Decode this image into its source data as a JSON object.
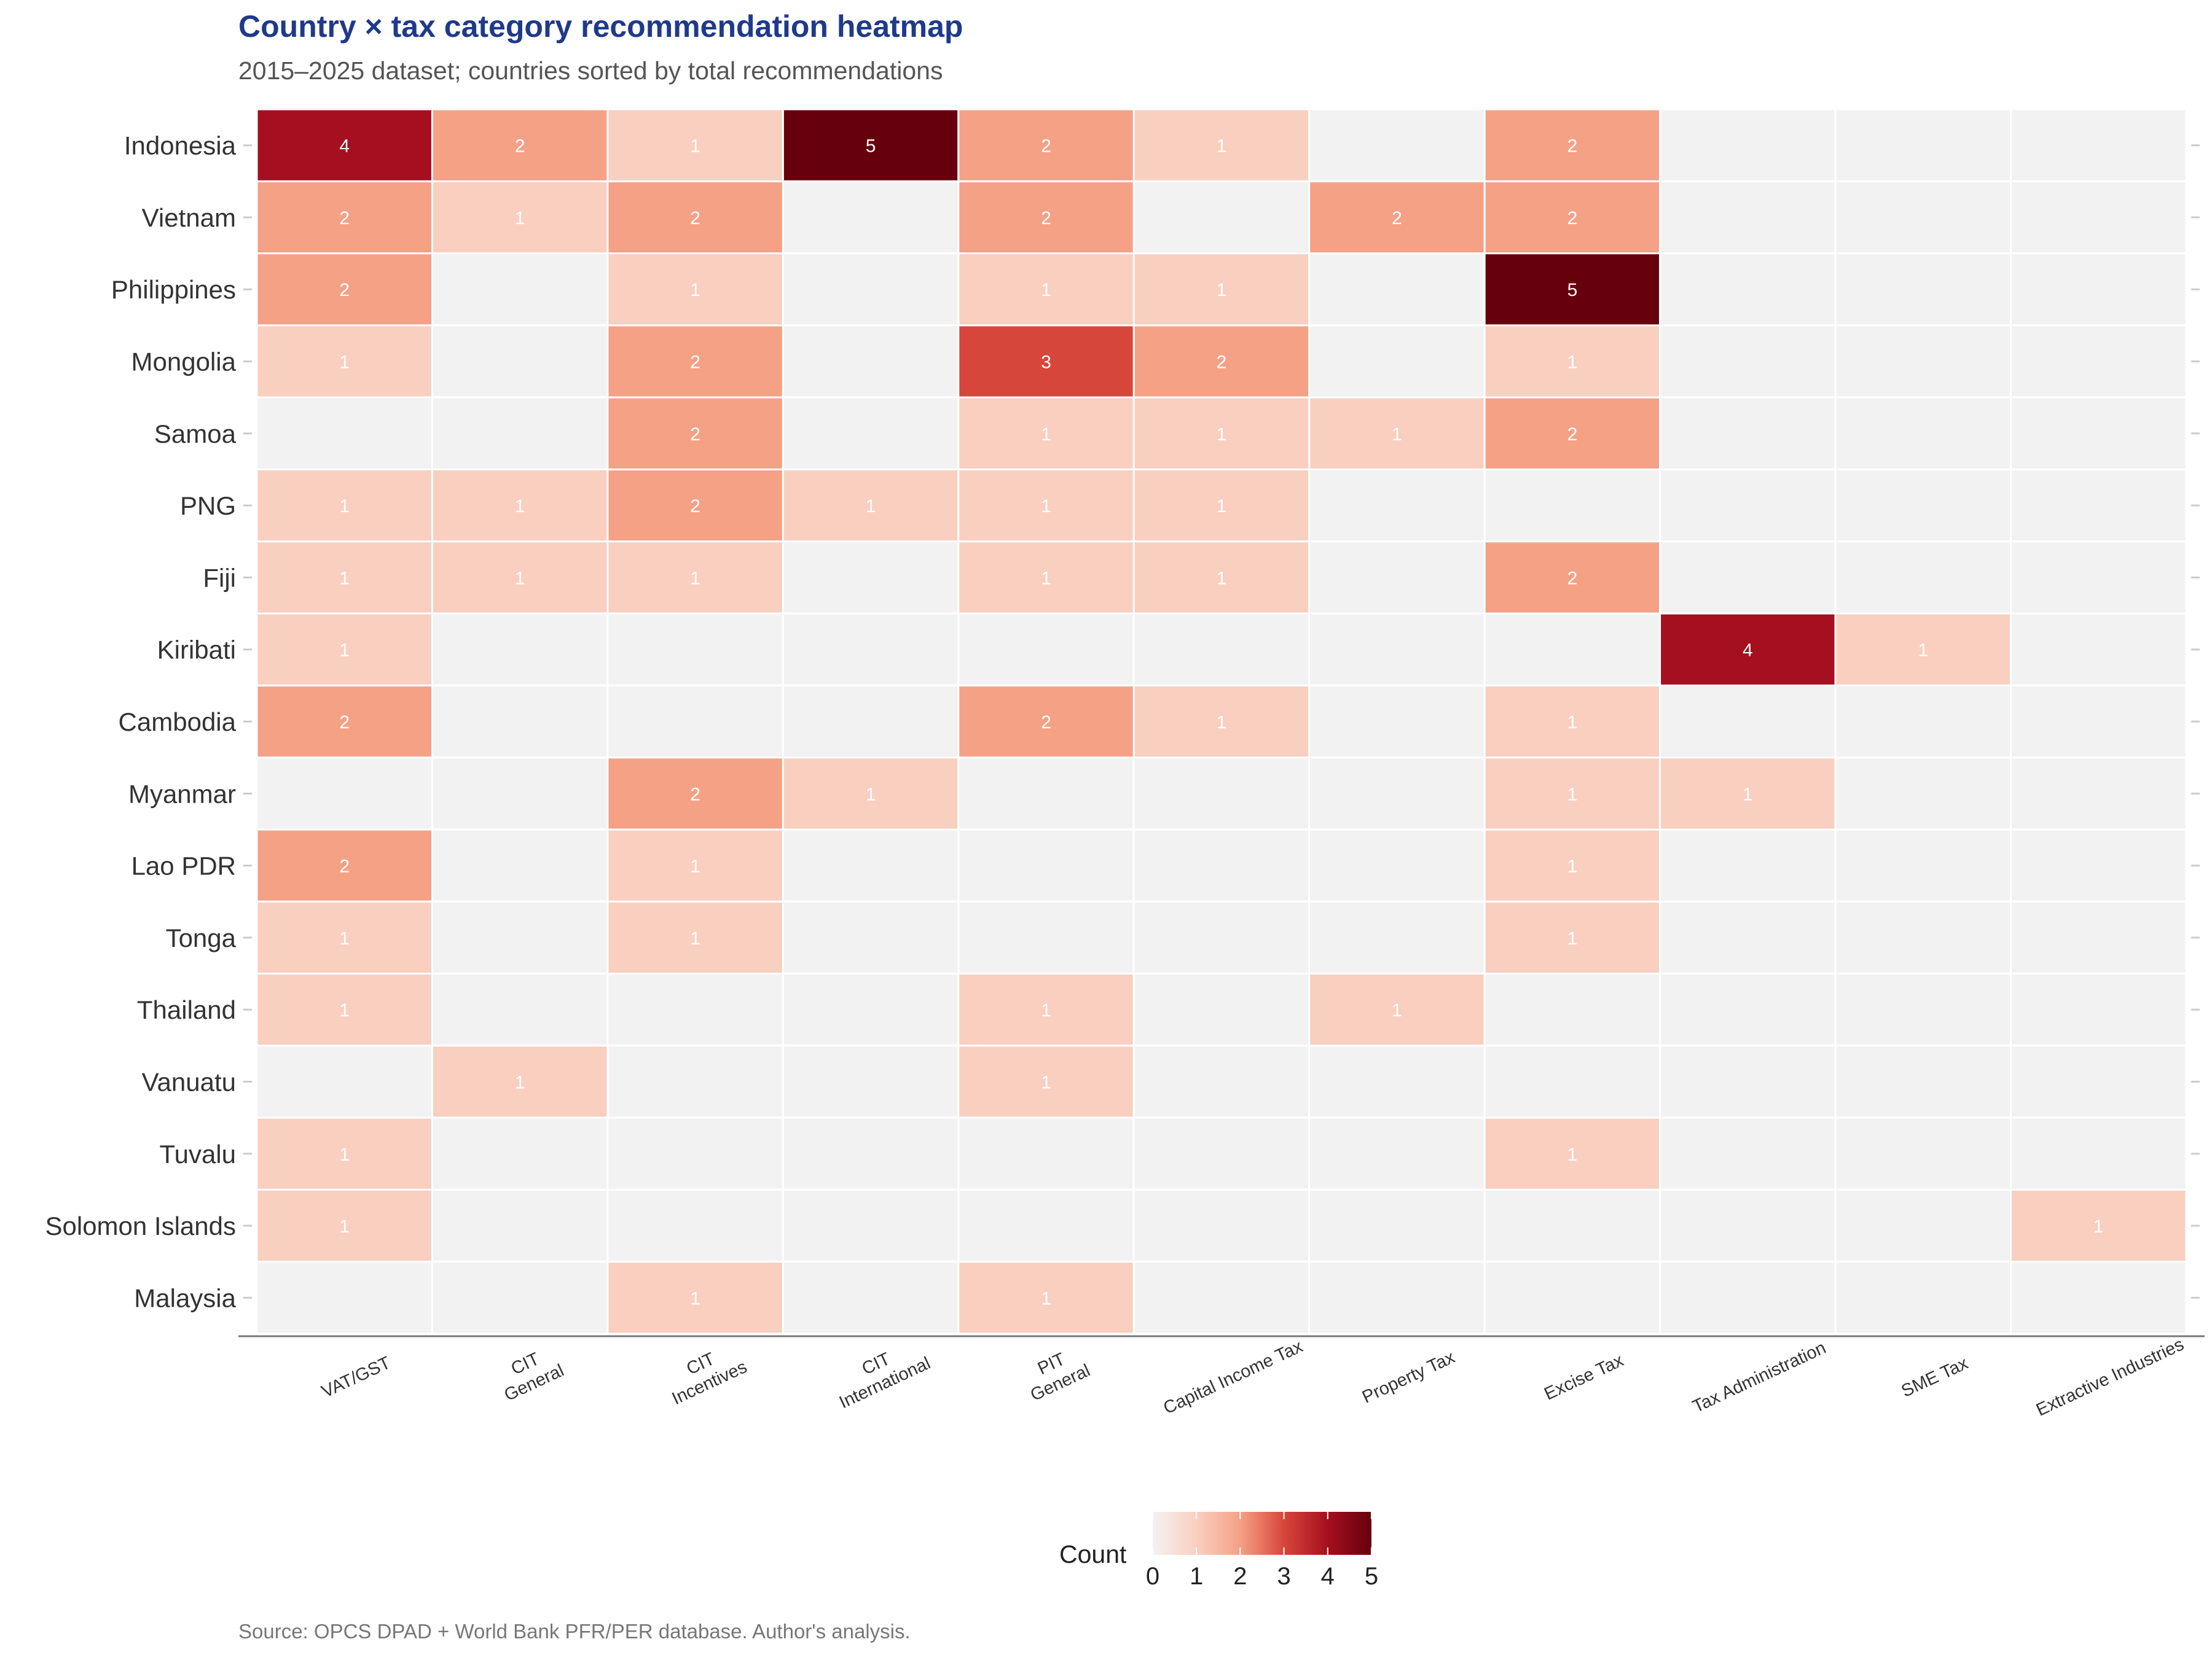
{
  "chart_data": {
    "type": "heatmap",
    "title": "Country × tax category recommendation heatmap",
    "subtitle": "2015–2025 dataset; countries sorted by total recommendations",
    "source": "Source: OPCS DPAD + World Bank PFR/PER database. Author's analysis.",
    "rows": [
      "Indonesia",
      "Vietnam",
      "Philippines",
      "Mongolia",
      "Samoa",
      "PNG",
      "Fiji",
      "Kiribati",
      "Cambodia",
      "Myanmar",
      "Lao PDR",
      "Tonga",
      "Thailand",
      "Vanuatu",
      "Tuvalu",
      "Solomon Islands",
      "Malaysia"
    ],
    "columns": [
      [
        "VAT/GST"
      ],
      [
        "CIT",
        "General"
      ],
      [
        "CIT",
        "Incentives"
      ],
      [
        "CIT",
        "International"
      ],
      [
        "PIT",
        "General"
      ],
      [
        "Capital Income Tax"
      ],
      [
        "Property Tax"
      ],
      [
        "Excise Tax"
      ],
      [
        "Tax Administration"
      ],
      [
        "SME Tax"
      ],
      [
        "Extractive Industries"
      ]
    ],
    "values": [
      [
        4,
        2,
        1,
        5,
        2,
        1,
        0,
        2,
        0,
        0,
        0
      ],
      [
        2,
        1,
        2,
        0,
        2,
        0,
        2,
        2,
        0,
        0,
        0
      ],
      [
        2,
        0,
        1,
        0,
        1,
        1,
        0,
        5,
        0,
        0,
        0
      ],
      [
        1,
        0,
        2,
        0,
        3,
        2,
        0,
        1,
        0,
        0,
        0
      ],
      [
        0,
        0,
        2,
        0,
        1,
        1,
        1,
        2,
        0,
        0,
        0
      ],
      [
        1,
        1,
        2,
        1,
        1,
        1,
        0,
        0,
        0,
        0,
        0
      ],
      [
        1,
        1,
        1,
        0,
        1,
        1,
        0,
        2,
        0,
        0,
        0
      ],
      [
        1,
        0,
        0,
        0,
        0,
        0,
        0,
        0,
        4,
        1,
        0
      ],
      [
        2,
        0,
        0,
        0,
        2,
        1,
        0,
        1,
        0,
        0,
        0
      ],
      [
        0,
        0,
        2,
        1,
        0,
        0,
        0,
        1,
        1,
        0,
        0
      ],
      [
        2,
        0,
        1,
        0,
        0,
        0,
        0,
        1,
        0,
        0,
        0
      ],
      [
        1,
        0,
        1,
        0,
        0,
        0,
        0,
        1,
        0,
        0,
        0
      ],
      [
        1,
        0,
        0,
        0,
        1,
        0,
        1,
        0,
        0,
        0,
        0
      ],
      [
        0,
        1,
        0,
        0,
        1,
        0,
        0,
        0,
        0,
        0,
        0
      ],
      [
        1,
        0,
        0,
        0,
        0,
        0,
        0,
        1,
        0,
        0,
        0
      ],
      [
        1,
        0,
        0,
        0,
        0,
        0,
        0,
        0,
        0,
        0,
        1
      ],
      [
        0,
        0,
        1,
        0,
        1,
        0,
        0,
        0,
        0,
        0,
        0
      ]
    ],
    "legend": {
      "title": "Count",
      "placement": "bottom",
      "range": [
        0,
        5
      ],
      "ticks": [
        "0",
        "1",
        "2",
        "3",
        "4",
        "5"
      ],
      "colors": [
        "#f2f2f2",
        "#f9cfc0",
        "#f4a186",
        "#d7463a",
        "#a50f1f",
        "#67000d"
      ]
    },
    "empty_cell_color": "#f2f2f2",
    "grid": true
  }
}
